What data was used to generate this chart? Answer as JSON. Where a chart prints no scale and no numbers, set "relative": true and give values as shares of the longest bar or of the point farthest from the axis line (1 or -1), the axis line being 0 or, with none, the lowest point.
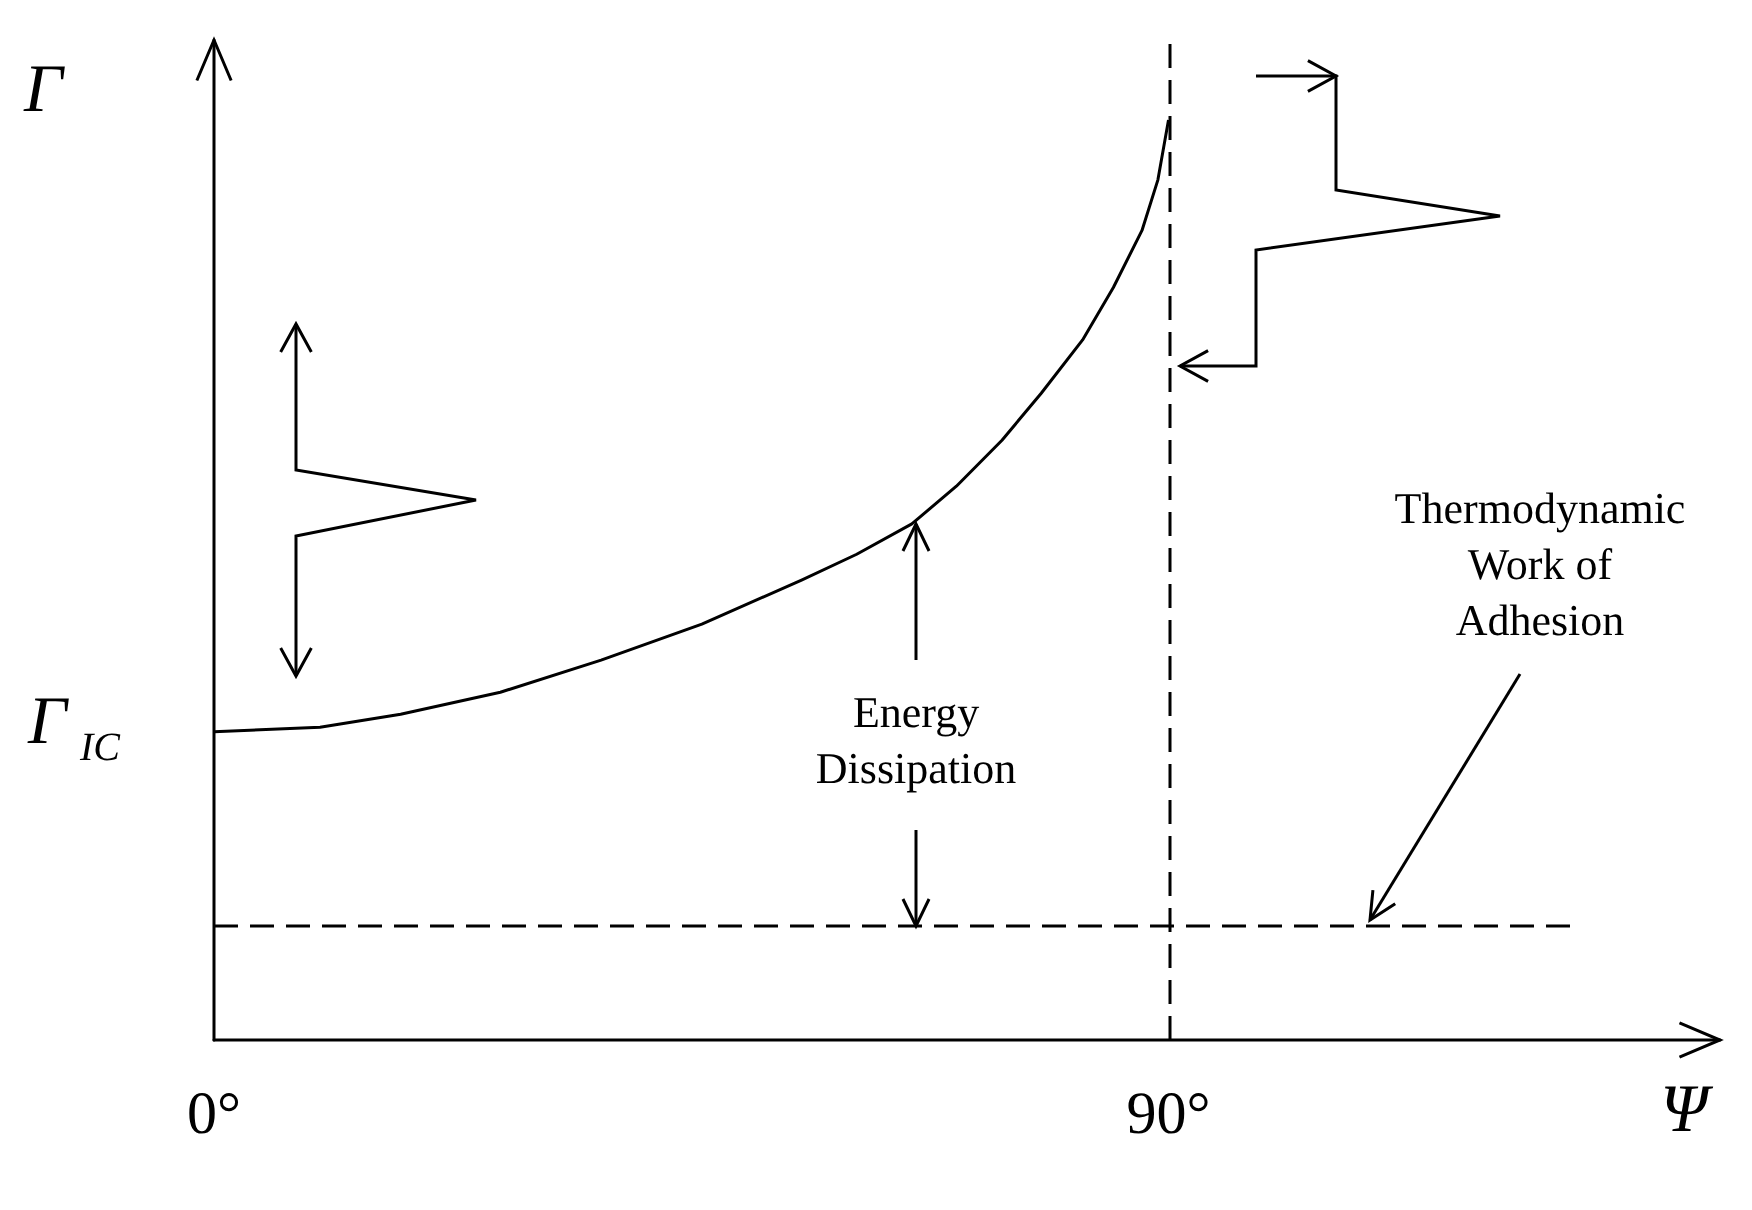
{
  "chart_data": {
    "type": "line",
    "relative": true,
    "xlabel": "Ψ",
    "ylabel": "Γ",
    "xlim": [
      0,
      142
    ],
    "xticks": [
      {
        "value": 0,
        "label": "0°"
      },
      {
        "value": 90,
        "label": "90°"
      }
    ],
    "marker": "none",
    "series": [
      {
        "color": "#000000",
        "line_style": "solid",
        "x": [
          0,
          10,
          17.6,
          27,
          36.5,
          46,
          55.4,
          60.6,
          65.8,
          70,
          74.3,
          78,
          81.9,
          84.8,
          87.5,
          89,
          90
        ],
        "values": [
          0.335,
          0.34,
          0.354,
          0.378,
          0.413,
          0.452,
          0.5,
          0.528,
          0.561,
          0.602,
          0.652,
          0.703,
          0.761,
          0.818,
          0.88,
          0.935,
          1
        ]
      },
      {
        "color": "#000000",
        "line_style": "dashed",
        "x": [
          0,
          128
        ],
        "values": [
          0.124,
          0.124
        ]
      }
    ],
    "ref_lines": [
      {
        "axis": "x",
        "value": 90,
        "color": "#000000",
        "line_style": "dashed"
      }
    ],
    "annotations": [
      "Γ$_{IC}$",
      "Energy\nDissipation",
      "Thermodynamic\nWork of\nAdhesion"
    ]
  }
}
